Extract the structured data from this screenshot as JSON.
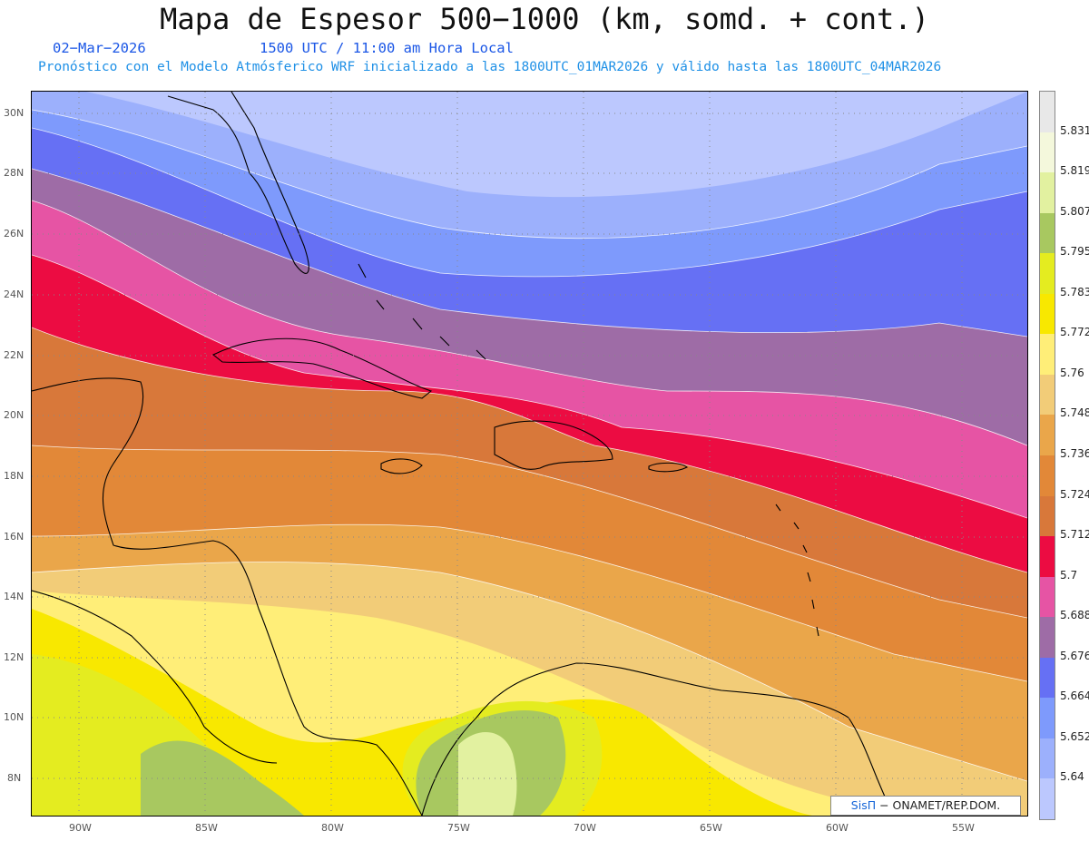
{
  "header": {
    "title": "Mapa de Espesor 500−1000 (km, somd. + cont.)",
    "date": "02−Mar−2026",
    "time": "1500 UTC / 11:00 am Hora Local",
    "forecast": "Pronóstico con el Modelo Atmósferico WRF inicializado a las 1800UTC_01MAR2026 y válido hasta las  1800UTC_04MAR2026"
  },
  "map": {
    "lat_labels": [
      "30N",
      "28N",
      "26N",
      "24N",
      "22N",
      "20N",
      "18N",
      "16N",
      "14N",
      "12N",
      "10N",
      "8N"
    ],
    "lon_labels": [
      "90W",
      "85W",
      "80W",
      "75W",
      "70W",
      "65W",
      "60W",
      "55W"
    ]
  },
  "colorbar": {
    "labels": [
      "5.831",
      "5.819",
      "5.807",
      "5.795",
      "5.783",
      "5.772",
      "5.76",
      "5.748",
      "5.736",
      "5.724",
      "5.712",
      "5.7",
      "5.688",
      "5.676",
      "5.664",
      "5.652",
      "5.64"
    ],
    "colors_top_to_bottom": [
      "#e8e8e8",
      "#f4f8dc",
      "#e2f1a0",
      "#a8c860",
      "#e4ec20",
      "#f8e800",
      "#ffee78",
      "#f2cc78",
      "#eaa64a",
      "#e28838",
      "#d8783a",
      "#ec0c42",
      "#e654a4",
      "#9e6ca6",
      "#6670f4",
      "#7e9afc",
      "#9cb0fc",
      "#bcc8fe"
    ]
  },
  "credit": {
    "sis": "SisΠ",
    "rest": " − ONAMET/REP.DOM."
  }
}
